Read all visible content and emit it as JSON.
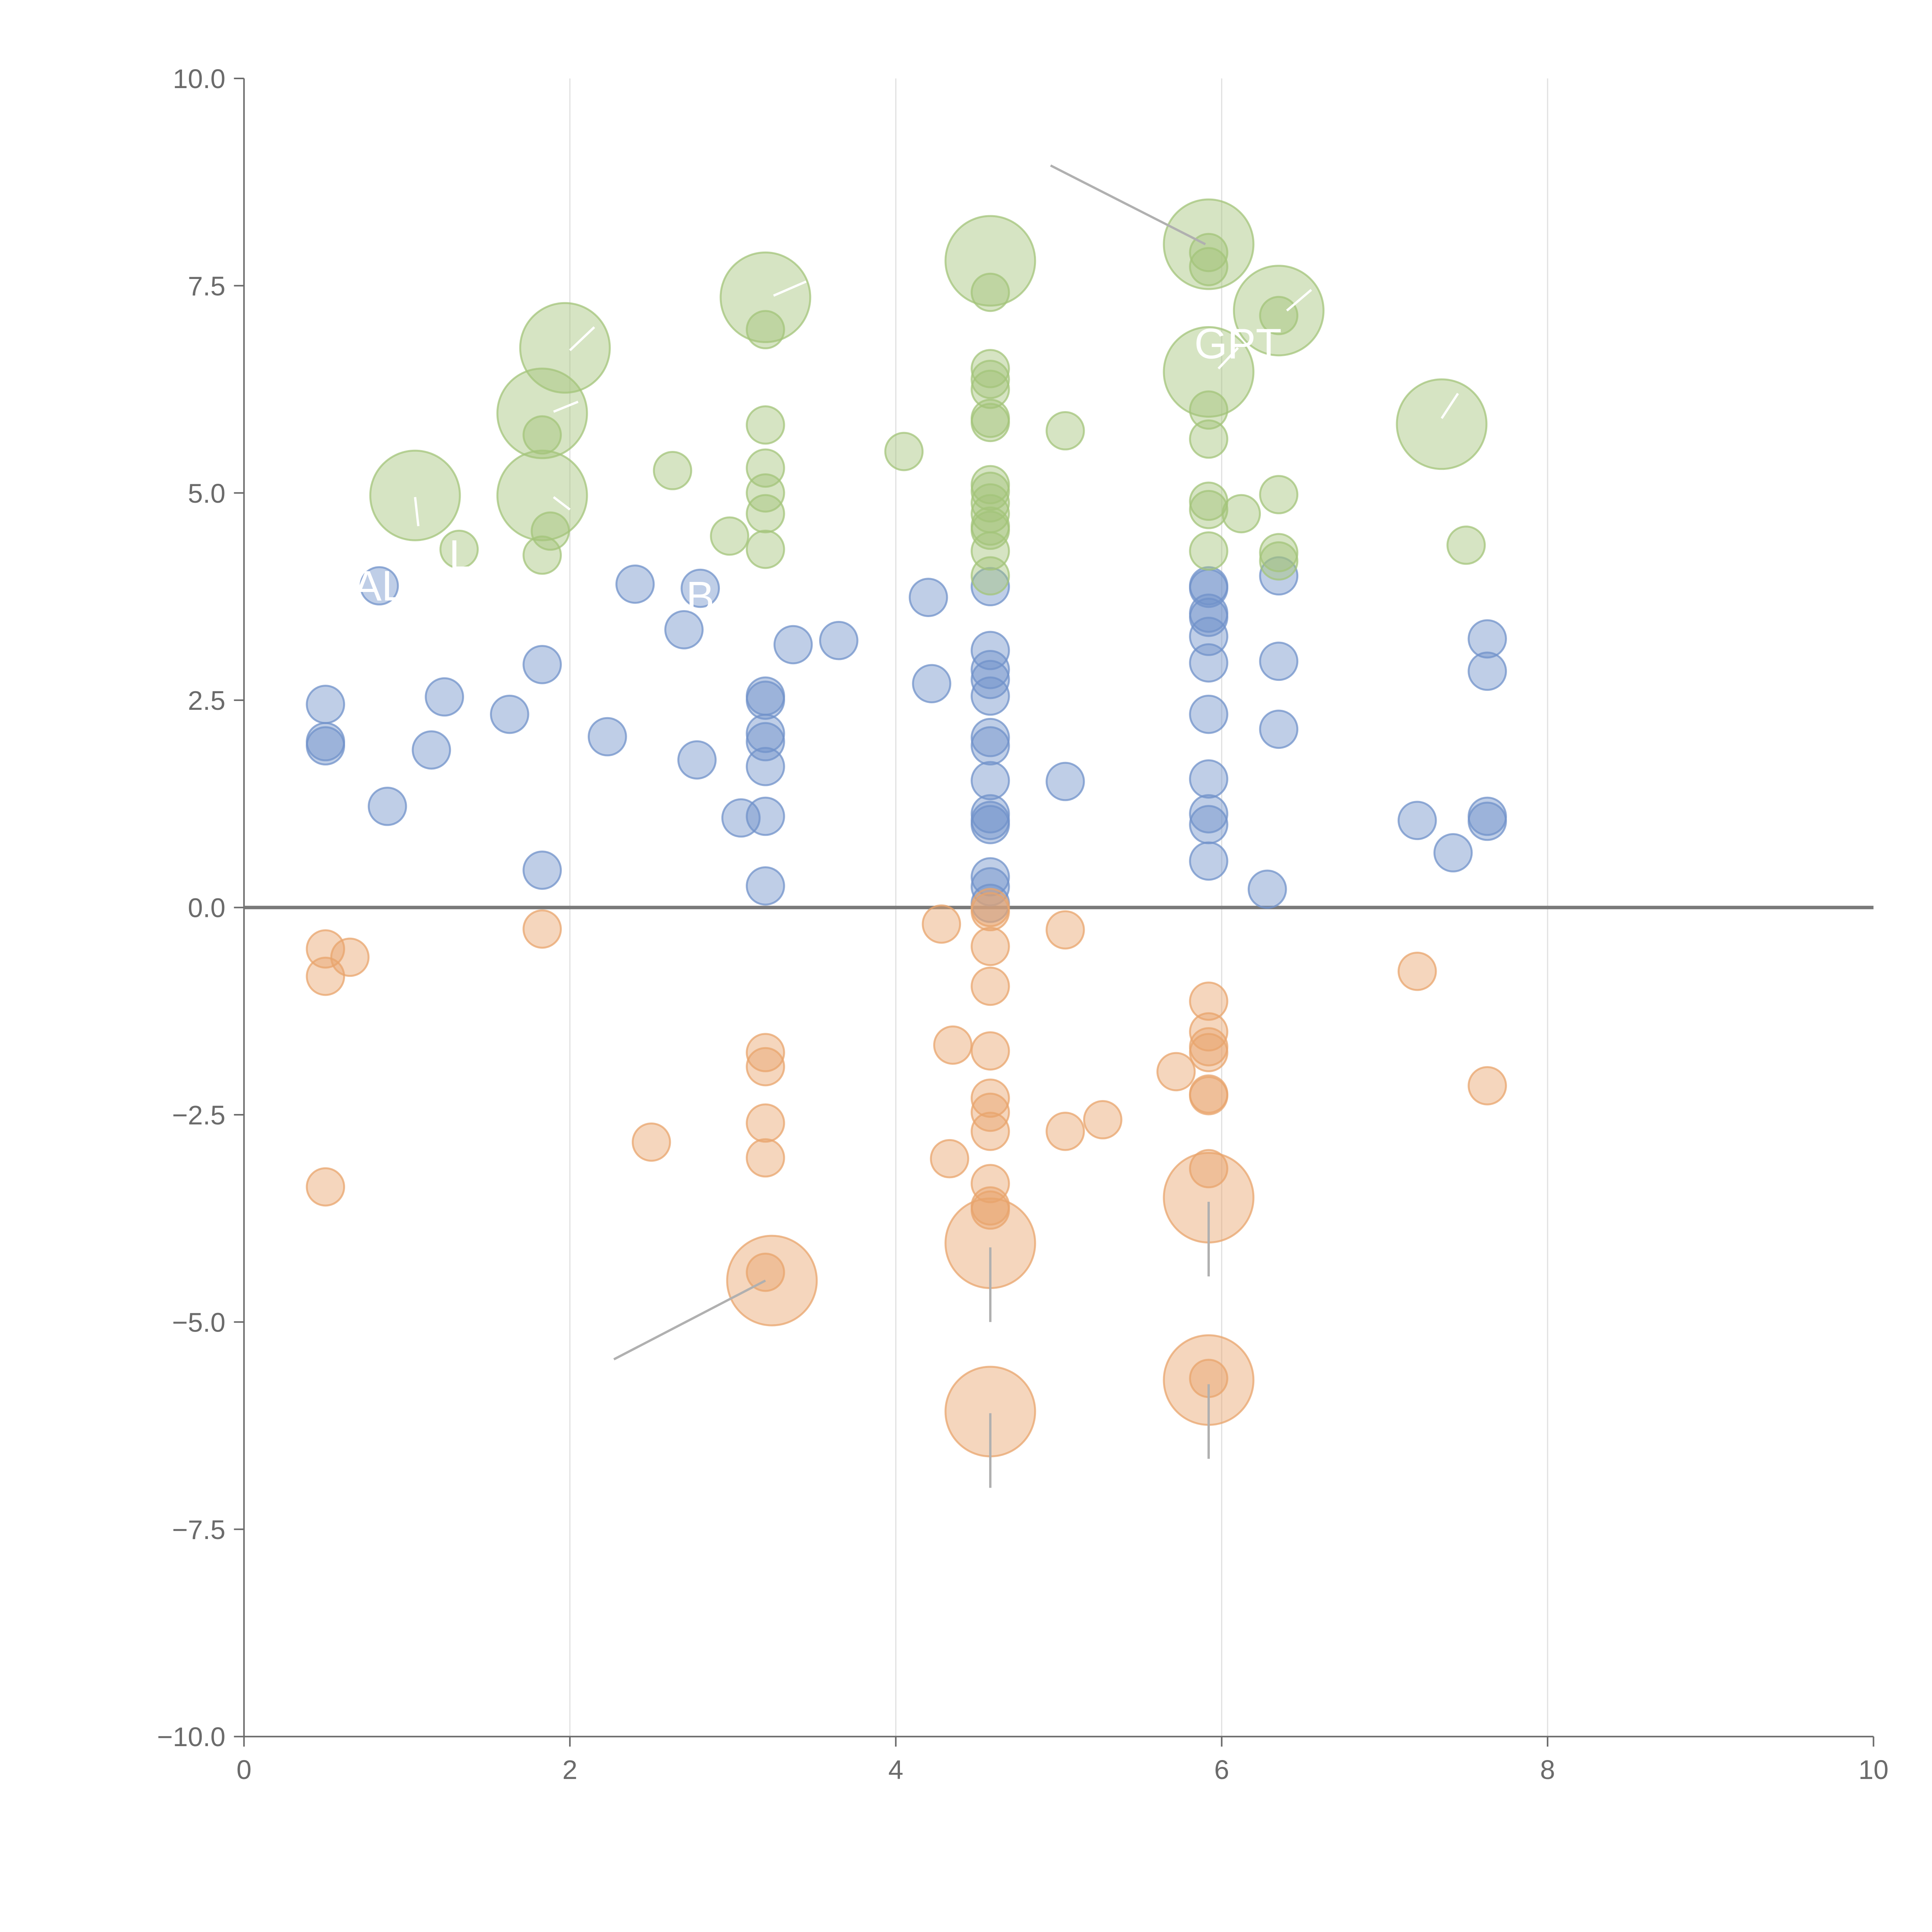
{
  "chart_data": {
    "type": "scatter",
    "title": "",
    "xlabel": "",
    "ylabel": "",
    "xlim": [
      0,
      10
    ],
    "ylim": [
      -10,
      10
    ],
    "x_ticks": [
      0,
      2,
      4,
      6,
      8,
      10
    ],
    "x_tick_labels": [
      "0",
      "2",
      "4",
      "6",
      "8",
      "10"
    ],
    "y_ticks": [
      -10,
      -7.5,
      -5,
      -2.5,
      0,
      2.5,
      5,
      7.5,
      10
    ],
    "y_tick_labels": [
      "−10.0",
      "−7.5",
      "−5.0",
      "−2.5",
      "0.0",
      "2.5",
      "5.0",
      "7.5",
      "10.0"
    ],
    "vertical_gridlines_at": [
      2,
      4,
      6,
      8
    ],
    "zero_line": 0,
    "legend": "none",
    "series": [
      {
        "name": "blue",
        "color": "#7092c9",
        "points": [
          {
            "x": 0.5,
            "y": 2.45,
            "s": 1
          },
          {
            "x": 0.5,
            "y": 2.0,
            "s": 1
          },
          {
            "x": 0.5,
            "y": 1.95,
            "s": 1
          },
          {
            "x": 0.83,
            "y": 3.88,
            "s": 1
          },
          {
            "x": 0.88,
            "y": 1.22,
            "s": 1
          },
          {
            "x": 1.15,
            "y": 1.9,
            "s": 1
          },
          {
            "x": 1.23,
            "y": 2.54,
            "s": 1
          },
          {
            "x": 1.63,
            "y": 2.33,
            "s": 1
          },
          {
            "x": 1.83,
            "y": 2.93,
            "s": 1
          },
          {
            "x": 1.83,
            "y": 0.45,
            "s": 1
          },
          {
            "x": 2.23,
            "y": 2.06,
            "s": 1
          },
          {
            "x": 2.4,
            "y": 3.9,
            "s": 1
          },
          {
            "x": 2.7,
            "y": 3.35,
            "s": 1
          },
          {
            "x": 2.78,
            "y": 1.78,
            "s": 1
          },
          {
            "x": 2.8,
            "y": 3.85,
            "s": 1
          },
          {
            "x": 3.05,
            "y": 1.08,
            "s": 1
          },
          {
            "x": 3.2,
            "y": 2.55,
            "s": 1
          },
          {
            "x": 3.2,
            "y": 2.5,
            "s": 1
          },
          {
            "x": 3.2,
            "y": 2.1,
            "s": 1
          },
          {
            "x": 3.2,
            "y": 2.0,
            "s": 1
          },
          {
            "x": 3.2,
            "y": 1.7,
            "s": 1
          },
          {
            "x": 3.2,
            "y": 1.1,
            "s": 1
          },
          {
            "x": 3.2,
            "y": 0.26,
            "s": 1
          },
          {
            "x": 3.37,
            "y": 3.17,
            "s": 1
          },
          {
            "x": 3.65,
            "y": 3.22,
            "s": 1
          },
          {
            "x": 4.2,
            "y": 3.74,
            "s": 1
          },
          {
            "x": 4.22,
            "y": 2.7,
            "s": 1
          },
          {
            "x": 4.58,
            "y": 3.87,
            "s": 1
          },
          {
            "x": 4.58,
            "y": 3.1,
            "s": 1
          },
          {
            "x": 4.58,
            "y": 2.87,
            "s": 1
          },
          {
            "x": 4.58,
            "y": 2.75,
            "s": 1
          },
          {
            "x": 4.58,
            "y": 2.55,
            "s": 1
          },
          {
            "x": 4.58,
            "y": 2.05,
            "s": 1
          },
          {
            "x": 4.58,
            "y": 1.95,
            "s": 1
          },
          {
            "x": 4.58,
            "y": 1.53,
            "s": 1
          },
          {
            "x": 4.58,
            "y": 1.13,
            "s": 1
          },
          {
            "x": 4.58,
            "y": 1.05,
            "s": 1
          },
          {
            "x": 4.58,
            "y": 1.0,
            "s": 1
          },
          {
            "x": 4.58,
            "y": 0.37,
            "s": 1
          },
          {
            "x": 4.58,
            "y": 0.25,
            "s": 1
          },
          {
            "x": 4.58,
            "y": 0.05,
            "s": 1
          },
          {
            "x": 5.04,
            "y": 1.52,
            "s": 1
          },
          {
            "x": 5.92,
            "y": 3.88,
            "s": 1
          },
          {
            "x": 5.92,
            "y": 3.85,
            "s": 1
          },
          {
            "x": 5.92,
            "y": 3.55,
            "s": 1
          },
          {
            "x": 5.92,
            "y": 3.5,
            "s": 1
          },
          {
            "x": 5.92,
            "y": 3.27,
            "s": 1
          },
          {
            "x": 5.92,
            "y": 2.95,
            "s": 1
          },
          {
            "x": 5.92,
            "y": 2.33,
            "s": 1
          },
          {
            "x": 5.92,
            "y": 1.55,
            "s": 1
          },
          {
            "x": 5.92,
            "y": 1.13,
            "s": 1
          },
          {
            "x": 5.92,
            "y": 1.0,
            "s": 1
          },
          {
            "x": 5.92,
            "y": 0.56,
            "s": 1
          },
          {
            "x": 6.28,
            "y": 0.22,
            "s": 1
          },
          {
            "x": 6.35,
            "y": 4.0,
            "s": 1
          },
          {
            "x": 6.35,
            "y": 2.97,
            "s": 1
          },
          {
            "x": 6.35,
            "y": 2.15,
            "s": 1
          },
          {
            "x": 7.2,
            "y": 1.05,
            "s": 1
          },
          {
            "x": 7.42,
            "y": 0.66,
            "s": 1
          },
          {
            "x": 7.63,
            "y": 3.24,
            "s": 1
          },
          {
            "x": 7.63,
            "y": 2.85,
            "s": 1
          },
          {
            "x": 7.63,
            "y": 1.1,
            "s": 1
          },
          {
            "x": 7.63,
            "y": 1.04,
            "s": 1
          }
        ]
      },
      {
        "name": "green",
        "color": "#a3c47a",
        "points": [
          {
            "x": 1.05,
            "y": 4.97,
            "s": 2.4
          },
          {
            "x": 1.32,
            "y": 4.32,
            "s": 1
          },
          {
            "x": 1.83,
            "y": 5.96,
            "s": 2.4
          },
          {
            "x": 1.83,
            "y": 5.7,
            "s": 1
          },
          {
            "x": 1.83,
            "y": 4.97,
            "s": 2.4
          },
          {
            "x": 1.88,
            "y": 4.54,
            "s": 1
          },
          {
            "x": 1.83,
            "y": 4.25,
            "s": 1
          },
          {
            "x": 1.97,
            "y": 6.75,
            "s": 2.4
          },
          {
            "x": 2.63,
            "y": 5.27,
            "s": 1
          },
          {
            "x": 2.98,
            "y": 4.48,
            "s": 1
          },
          {
            "x": 3.2,
            "y": 7.36,
            "s": 2.4
          },
          {
            "x": 3.2,
            "y": 6.97,
            "s": 1
          },
          {
            "x": 3.2,
            "y": 5.82,
            "s": 1
          },
          {
            "x": 3.2,
            "y": 5.3,
            "s": 1
          },
          {
            "x": 3.2,
            "y": 5.0,
            "s": 1
          },
          {
            "x": 3.2,
            "y": 4.75,
            "s": 1
          },
          {
            "x": 3.2,
            "y": 4.32,
            "s": 1
          },
          {
            "x": 4.05,
            "y": 5.5,
            "s": 1
          },
          {
            "x": 4.58,
            "y": 7.8,
            "s": 2.4
          },
          {
            "x": 4.58,
            "y": 7.42,
            "s": 1
          },
          {
            "x": 4.58,
            "y": 6.5,
            "s": 1
          },
          {
            "x": 4.58,
            "y": 6.37,
            "s": 1
          },
          {
            "x": 4.58,
            "y": 6.25,
            "s": 1
          },
          {
            "x": 4.58,
            "y": 5.9,
            "s": 1
          },
          {
            "x": 4.58,
            "y": 5.85,
            "s": 1
          },
          {
            "x": 4.58,
            "y": 5.1,
            "s": 1
          },
          {
            "x": 4.58,
            "y": 5.02,
            "s": 1
          },
          {
            "x": 4.58,
            "y": 4.88,
            "s": 1
          },
          {
            "x": 4.58,
            "y": 4.75,
            "s": 1
          },
          {
            "x": 4.58,
            "y": 4.6,
            "s": 1
          },
          {
            "x": 4.58,
            "y": 4.55,
            "s": 1
          },
          {
            "x": 4.58,
            "y": 4.3,
            "s": 1
          },
          {
            "x": 4.58,
            "y": 4.0,
            "s": 1
          },
          {
            "x": 5.04,
            "y": 5.75,
            "s": 1
          },
          {
            "x": 5.92,
            "y": 8.0,
            "s": 2.4
          },
          {
            "x": 5.92,
            "y": 7.9,
            "s": 1
          },
          {
            "x": 5.92,
            "y": 7.73,
            "s": 1
          },
          {
            "x": 5.92,
            "y": 6.46,
            "s": 2.4
          },
          {
            "x": 5.92,
            "y": 6.0,
            "s": 1
          },
          {
            "x": 5.92,
            "y": 5.65,
            "s": 1
          },
          {
            "x": 5.92,
            "y": 4.9,
            "s": 1
          },
          {
            "x": 5.92,
            "y": 4.8,
            "s": 1
          },
          {
            "x": 5.92,
            "y": 4.3,
            "s": 1
          },
          {
            "x": 6.12,
            "y": 4.75,
            "s": 1
          },
          {
            "x": 6.35,
            "y": 7.2,
            "s": 2.4
          },
          {
            "x": 6.35,
            "y": 7.14,
            "s": 1
          },
          {
            "x": 6.35,
            "y": 4.98,
            "s": 1
          },
          {
            "x": 6.35,
            "y": 4.28,
            "s": 1
          },
          {
            "x": 6.35,
            "y": 4.18,
            "s": 1
          },
          {
            "x": 7.35,
            "y": 5.83,
            "s": 2.4
          },
          {
            "x": 7.5,
            "y": 4.37,
            "s": 1
          }
        ]
      },
      {
        "name": "orange",
        "color": "#e8a46c",
        "points": [
          {
            "x": 0.5,
            "y": -0.5,
            "s": 1
          },
          {
            "x": 0.5,
            "y": -0.83,
            "s": 1
          },
          {
            "x": 0.5,
            "y": -3.37,
            "s": 1
          },
          {
            "x": 0.65,
            "y": -0.6,
            "s": 1
          },
          {
            "x": 1.83,
            "y": -0.26,
            "s": 1
          },
          {
            "x": 2.5,
            "y": -2.83,
            "s": 1
          },
          {
            "x": 3.2,
            "y": -1.75,
            "s": 1
          },
          {
            "x": 3.2,
            "y": -1.92,
            "s": 1
          },
          {
            "x": 3.2,
            "y": -2.6,
            "s": 1
          },
          {
            "x": 3.2,
            "y": -3.02,
            "s": 1
          },
          {
            "x": 3.24,
            "y": -4.5,
            "s": 2.4
          },
          {
            "x": 3.2,
            "y": -4.4,
            "s": 1
          },
          {
            "x": 4.28,
            "y": -0.2,
            "s": 1
          },
          {
            "x": 4.35,
            "y": -1.66,
            "s": 1
          },
          {
            "x": 4.33,
            "y": -3.03,
            "s": 1
          },
          {
            "x": 4.58,
            "y": 0.0,
            "s": 1
          },
          {
            "x": 4.58,
            "y": -0.05,
            "s": 1
          },
          {
            "x": 4.58,
            "y": -0.47,
            "s": 1
          },
          {
            "x": 4.58,
            "y": -0.95,
            "s": 1
          },
          {
            "x": 4.58,
            "y": -1.73,
            "s": 1
          },
          {
            "x": 4.58,
            "y": -2.3,
            "s": 1
          },
          {
            "x": 4.58,
            "y": -2.47,
            "s": 1
          },
          {
            "x": 4.58,
            "y": -2.7,
            "s": 1
          },
          {
            "x": 4.58,
            "y": -3.33,
            "s": 1
          },
          {
            "x": 4.58,
            "y": -3.6,
            "s": 1
          },
          {
            "x": 4.58,
            "y": -3.65,
            "s": 1
          },
          {
            "x": 4.58,
            "y": -4.05,
            "s": 2.4
          },
          {
            "x": 4.58,
            "y": -6.08,
            "s": 2.4
          },
          {
            "x": 5.04,
            "y": -0.27,
            "s": 1
          },
          {
            "x": 5.04,
            "y": -2.7,
            "s": 1
          },
          {
            "x": 5.27,
            "y": -2.56,
            "s": 1
          },
          {
            "x": 5.72,
            "y": -1.98,
            "s": 1
          },
          {
            "x": 5.92,
            "y": -1.13,
            "s": 1
          },
          {
            "x": 5.92,
            "y": -1.5,
            "s": 1
          },
          {
            "x": 5.92,
            "y": -1.68,
            "s": 1
          },
          {
            "x": 5.92,
            "y": -1.75,
            "s": 1
          },
          {
            "x": 5.92,
            "y": -2.25,
            "s": 1
          },
          {
            "x": 5.92,
            "y": -2.27,
            "s": 1
          },
          {
            "x": 5.92,
            "y": -3.15,
            "s": 1
          },
          {
            "x": 5.92,
            "y": -3.5,
            "s": 2.4
          },
          {
            "x": 5.92,
            "y": -5.7,
            "s": 2.4
          },
          {
            "x": 5.92,
            "y": -5.68,
            "s": 1
          },
          {
            "x": 7.2,
            "y": -0.77,
            "s": 1
          },
          {
            "x": 7.63,
            "y": -2.15,
            "s": 1
          }
        ]
      }
    ],
    "annotations": [
      {
        "text": "AL",
        "x": 0.83,
        "y": 3.88,
        "color": "#ffffff"
      },
      {
        "text": "L",
        "x": 1.33,
        "y": 4.25,
        "color": "#ffffff"
      },
      {
        "text": "B",
        "x": 2.8,
        "y": 3.75,
        "color": "#ffffff"
      },
      {
        "text": "GPT",
        "x": 6.1,
        "y": 6.8,
        "color": "#ffffff"
      }
    ],
    "leader_lines": [
      {
        "x1": 4.95,
        "y1": 8.95,
        "x2": 5.9,
        "y2": 8.0,
        "color": "#b0b0b0"
      },
      {
        "x1": 2.27,
        "y1": -5.45,
        "x2": 3.2,
        "y2": -4.5,
        "color": "#b0b0b0"
      },
      {
        "x1": 4.58,
        "y1": -4.1,
        "x2": 4.58,
        "y2": -5.0,
        "color": "#b0b0b0"
      },
      {
        "x1": 4.58,
        "y1": -6.1,
        "x2": 4.58,
        "y2": -7.0,
        "color": "#b0b0b0"
      },
      {
        "x1": 5.92,
        "y1": -3.55,
        "x2": 5.92,
        "y2": -4.45,
        "color": "#b0b0b0"
      },
      {
        "x1": 5.92,
        "y1": -5.75,
        "x2": 5.92,
        "y2": -6.65,
        "color": "#b0b0b0"
      },
      {
        "x1": 1.05,
        "y1": 4.95,
        "x2": 1.07,
        "y2": 4.6,
        "color": "#ffffff"
      },
      {
        "x1": 1.9,
        "y1": 4.95,
        "x2": 2.0,
        "y2": 4.8,
        "color": "#ffffff"
      },
      {
        "x1": 1.9,
        "y1": 5.98,
        "x2": 2.05,
        "y2": 6.1,
        "color": "#ffffff"
      },
      {
        "x1": 2.0,
        "y1": 6.72,
        "x2": 2.15,
        "y2": 7.0,
        "color": "#ffffff"
      },
      {
        "x1": 3.25,
        "y1": 7.38,
        "x2": 3.45,
        "y2": 7.55,
        "color": "#ffffff"
      },
      {
        "x1": 6.4,
        "y1": 7.2,
        "x2": 6.55,
        "y2": 7.45,
        "color": "#ffffff"
      },
      {
        "x1": 5.98,
        "y1": 6.5,
        "x2": 6.1,
        "y2": 6.75,
        "color": "#ffffff"
      },
      {
        "x1": 7.35,
        "y1": 5.9,
        "x2": 7.45,
        "y2": 6.2,
        "color": "#ffffff"
      }
    ],
    "colors": {
      "axis": "#6b6b6b",
      "grid": "#e0e0e0",
      "zero_line": "#7a7a7a",
      "tick_text": "#6b6b6b"
    }
  }
}
